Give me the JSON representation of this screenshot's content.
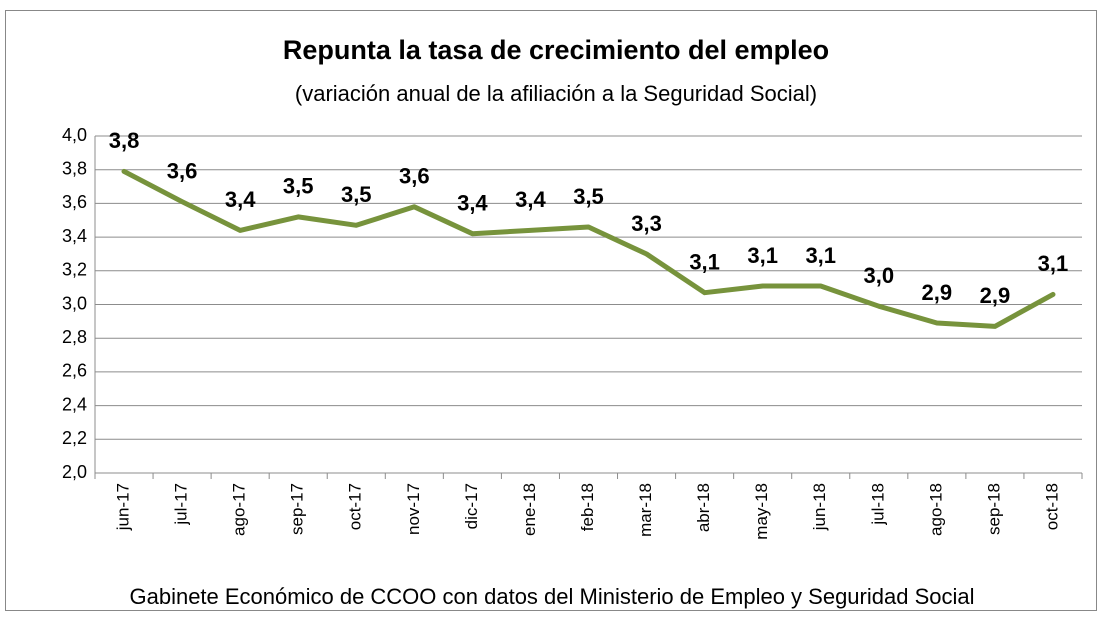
{
  "chart_data": {
    "type": "line",
    "title": "Repunta la tasa de crecimiento del empleo",
    "subtitle": "(variación anual de la afiliación a la Seguridad Social)",
    "source": "Gabinete Económico de CCOO con datos del Ministerio de Empleo y Seguridad Social",
    "categories": [
      "jun-17",
      "jul-17",
      "ago-17",
      "sep-17",
      "oct-17",
      "nov-17",
      "dic-17",
      "ene-18",
      "feb-18",
      "mar-18",
      "abr-18",
      "may-18",
      "jun-18",
      "jul-18",
      "ago-18",
      "sep-18",
      "oct-18"
    ],
    "values": [
      3.79,
      3.61,
      3.44,
      3.52,
      3.47,
      3.58,
      3.42,
      3.44,
      3.46,
      3.3,
      3.07,
      3.11,
      3.11,
      2.99,
      2.89,
      2.87,
      3.06
    ],
    "value_labels": [
      "3,8",
      "3,6",
      "3,4",
      "3,5",
      "3,5",
      "3,6",
      "3,4",
      "3,4",
      "3,5",
      "3,3",
      "3,1",
      "3,1",
      "3,1",
      "3,0",
      "2,9",
      "2,9",
      "3,1"
    ],
    "color": "#77933c",
    "ylim": [
      2.0,
      4.0
    ],
    "yticks": [
      {
        "value": 2.0,
        "label": "2,0"
      },
      {
        "value": 2.2,
        "label": "2,2"
      },
      {
        "value": 2.4,
        "label": "2,4"
      },
      {
        "value": 2.6,
        "label": "2,6"
      },
      {
        "value": 2.8,
        "label": "2,8"
      },
      {
        "value": 3.0,
        "label": "3,0"
      },
      {
        "value": 3.2,
        "label": "3,2"
      },
      {
        "value": 3.4,
        "label": "3,4"
      },
      {
        "value": 3.6,
        "label": "3,6"
      },
      {
        "value": 3.8,
        "label": "3,8"
      },
      {
        "value": 4.0,
        "label": "4,0"
      }
    ],
    "grid": true
  }
}
